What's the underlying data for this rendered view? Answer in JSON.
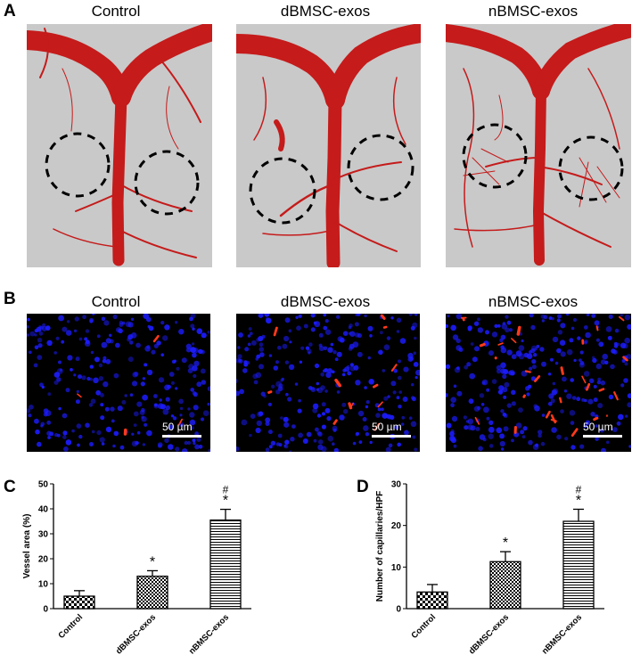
{
  "panels": {
    "A": {
      "letter": "A",
      "titles": [
        "Control",
        "dBMSC-exos",
        "nBMSC-exos"
      ]
    },
    "B": {
      "letter": "B",
      "titles": [
        "Control",
        "dBMSC-exos",
        "nBMSC-exos"
      ],
      "scale_bar": "50 µm"
    },
    "C": {
      "letter": "C"
    },
    "D": {
      "letter": "D"
    }
  },
  "colors": {
    "vessel": "#c51b1b",
    "background_gray": "#c9c9c9",
    "nuclei": "#1c1cff",
    "capillary": "#ff3a1a"
  },
  "chart_data": [
    {
      "type": "bar",
      "categories": [
        "Control",
        "dBMSC-exos",
        "nBMSC-exos"
      ],
      "values": [
        5,
        13,
        35.5
      ],
      "errors": [
        2.2,
        2.2,
        4.3
      ],
      "annotations": [
        "",
        "*",
        "#\n*"
      ],
      "ylabel": "Vessel area (%)",
      "ylim": [
        0,
        50
      ],
      "yticks": [
        0,
        10,
        20,
        30,
        40,
        50
      ],
      "patterns": [
        "checker",
        "checker-fine",
        "horizontal-lines"
      ]
    },
    {
      "type": "bar",
      "categories": [
        "Control",
        "dBMSC-exos",
        "nBMSC-exos"
      ],
      "values": [
        4,
        11.3,
        21
      ],
      "errors": [
        1.8,
        2.4,
        2.9
      ],
      "annotations": [
        "",
        "*",
        "#\n*"
      ],
      "ylabel": "Number of capillaries/HPF",
      "ylim": [
        0,
        30
      ],
      "yticks": [
        0,
        10,
        20,
        30
      ],
      "patterns": [
        "checker",
        "checker-fine",
        "horizontal-lines"
      ]
    }
  ]
}
